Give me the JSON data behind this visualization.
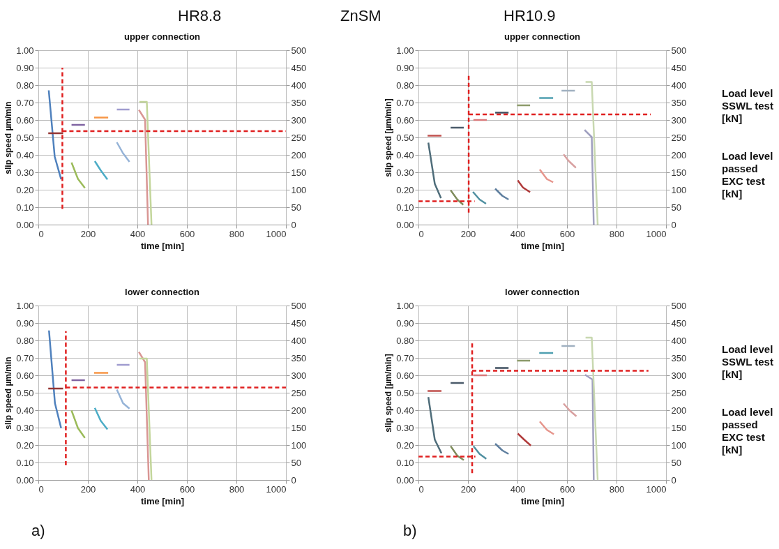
{
  "chart_data": [
    {
      "type": "line",
      "title": "upper connection",
      "xlabel": "time [min]",
      "ylabel": "slip speed µm/min",
      "annotations": [
        "HR8.8",
        "ZnSM"
      ],
      "xlim": [
        0,
        1000
      ],
      "xticks": [
        0,
        200,
        400,
        600,
        800,
        1000
      ],
      "ylim": [
        0,
        1
      ],
      "yticks": [
        {
          "value": 0,
          "label": "0.00"
        },
        {
          "value": 0.1,
          "label": "0.10"
        },
        {
          "value": 0.2,
          "label": "0.20"
        },
        {
          "value": 0.3,
          "label": "0.30"
        },
        {
          "value": 0.4,
          "label": "0.40"
        },
        {
          "value": 0.5,
          "label": "0.50"
        },
        {
          "value": 0.6,
          "label": "0.60"
        },
        {
          "value": 0.7,
          "label": "0.70"
        },
        {
          "value": 0.8,
          "label": "0.80"
        },
        {
          "value": 0.9,
          "label": "0.90"
        },
        {
          "value": 1,
          "label": "1.00"
        }
      ],
      "y2lim": [
        0,
        500
      ],
      "y2ticks": [
        0,
        50,
        100,
        150,
        200,
        250,
        300,
        350,
        400,
        450,
        500
      ],
      "grid": true,
      "legend": false,
      "series": [
        {
          "color": "#4f81bd",
          "x": [
            42,
            66,
            92
          ],
          "values": [
            0.77,
            0.39,
            0.26
          ]
        },
        {
          "color": "#943634",
          "axis": "y2",
          "x": [
            40,
            100
          ],
          "values": [
            262,
            262
          ]
        },
        {
          "color": "#8064a2",
          "axis": "y2",
          "x": [
            134,
            188
          ],
          "values": [
            286,
            286
          ]
        },
        {
          "color": "#9bbb59",
          "x": [
            134,
            160,
            188
          ],
          "values": [
            0.356,
            0.262,
            0.21
          ]
        },
        {
          "color": "#f79646",
          "axis": "y2",
          "x": [
            225,
            282
          ],
          "values": [
            307,
            307
          ]
        },
        {
          "color": "#4bacc6",
          "x": [
            228,
            252,
            279
          ],
          "values": [
            0.364,
            0.311,
            0.259
          ]
        },
        {
          "color": "#a09ccf",
          "axis": "y2",
          "x": [
            317,
            368
          ],
          "values": [
            330,
            330
          ]
        },
        {
          "color": "#95b3d7",
          "x": [
            317,
            342,
            368
          ],
          "values": [
            0.472,
            0.409,
            0.36
          ]
        },
        {
          "color": "#d99694",
          "x": [
            406,
            431,
            443
          ],
          "values": [
            0.658,
            0.602,
            0
          ]
        },
        {
          "color": "#c3d69b",
          "axis": "y2",
          "x": [
            408,
            438,
            457
          ],
          "values": [
            352,
            352,
            0
          ]
        },
        {
          "color": "#e02020",
          "line_style": "dashed",
          "x": [
            97,
            97
          ],
          "values": [
            0.09,
            0.9
          ]
        },
        {
          "color": "#e02020",
          "line_style": "dashed",
          "axis": "y2",
          "x": [
            97,
            1000
          ],
          "values": [
            268,
            268
          ]
        }
      ]
    },
    {
      "type": "line",
      "title": "upper connection",
      "xlabel": "time [min]",
      "ylabel": "slip speed [µm/min]",
      "annotations": [
        "HR10.9",
        "Load level SSWL test [kN]",
        "Load level passed EXC test [kN]"
      ],
      "xlim": [
        0,
        1000
      ],
      "xticks": [
        0,
        200,
        400,
        600,
        800,
        1000
      ],
      "ylim": [
        0,
        1
      ],
      "yticks": [
        {
          "value": 0,
          "label": "0.00"
        },
        {
          "value": 0.1,
          "label": "0.10"
        },
        {
          "value": 0.2,
          "label": "0.20"
        },
        {
          "value": 0.3,
          "label": "0.30"
        },
        {
          "value": 0.4,
          "label": "0.40"
        },
        {
          "value": 0.5,
          "label": "0.50"
        },
        {
          "value": 0.6,
          "label": "0.60"
        },
        {
          "value": 0.7,
          "label": "0.70"
        },
        {
          "value": 0.8,
          "label": "0.80"
        },
        {
          "value": 0.9,
          "label": "0.90"
        },
        {
          "value": 1,
          "label": "1.00"
        }
      ],
      "y2lim": [
        0,
        500
      ],
      "y2ticks": [
        0,
        50,
        100,
        150,
        200,
        250,
        300,
        350,
        400,
        450,
        500
      ],
      "grid": true,
      "legend": false,
      "series": [
        {
          "color": "#4f6d7a",
          "x": [
            40,
            66,
            91
          ],
          "values": [
            0.47,
            0.234,
            0.152
          ]
        },
        {
          "color": "#c0504d",
          "axis": "y2",
          "x": [
            37,
            93
          ],
          "values": [
            255,
            255
          ]
        },
        {
          "color": "#7f8c5c",
          "x": [
            130,
            157,
            181
          ],
          "values": [
            0.197,
            0.144,
            0.114
          ]
        },
        {
          "color": "#4a5a6a",
          "axis": "y2",
          "x": [
            130,
            183
          ],
          "values": [
            278,
            278
          ]
        },
        {
          "color": "#d9787a",
          "axis": "y2",
          "x": [
            222,
            276
          ],
          "values": [
            300,
            300
          ]
        },
        {
          "color": "#4f8fa0",
          "x": [
            220,
            247,
            273
          ],
          "values": [
            0.188,
            0.144,
            0.12
          ]
        },
        {
          "color": "#3f4f5f",
          "axis": "y2",
          "x": [
            310,
            364
          ],
          "values": [
            321,
            321
          ]
        },
        {
          "color": "#5f7f9f",
          "x": [
            310,
            339,
            364
          ],
          "values": [
            0.206,
            0.165,
            0.144
          ]
        },
        {
          "color": "#8c9a6a",
          "axis": "y2",
          "x": [
            398,
            451
          ],
          "values": [
            342,
            342
          ]
        },
        {
          "color": "#b03a3a",
          "x": [
            401,
            422,
            451
          ],
          "values": [
            0.254,
            0.213,
            0.186
          ]
        },
        {
          "color": "#4f9fb0",
          "axis": "y2",
          "x": [
            488,
            544
          ],
          "values": [
            363,
            363
          ]
        },
        {
          "color": "#e6958c",
          "x": [
            490,
            519,
            544
          ],
          "values": [
            0.316,
            0.261,
            0.243
          ]
        },
        {
          "color": "#a0b0c0",
          "axis": "y2",
          "x": [
            578,
            632
          ],
          "values": [
            384,
            384
          ]
        },
        {
          "color": "#d8a0a0",
          "x": [
            586,
            607,
            636
          ],
          "values": [
            0.403,
            0.365,
            0.326
          ]
        },
        {
          "color": "#a0a0c0",
          "x": [
            671,
            700,
            708
          ],
          "values": [
            0.543,
            0.502,
            0
          ]
        },
        {
          "color": "#c8d8b0",
          "axis": "y2",
          "x": [
            675,
            700,
            724
          ],
          "values": [
            409,
            409,
            0
          ]
        },
        {
          "color": "#e02020",
          "line_style": "dashed",
          "x": [
            203,
            203
          ],
          "values": [
            0.069,
            0.857
          ]
        },
        {
          "color": "#e02020",
          "line_style": "dashed",
          "axis": "y2",
          "x": [
            0,
            227
          ],
          "values": [
            67,
            67
          ]
        },
        {
          "color": "#e02020",
          "line_style": "dashed",
          "axis": "y2",
          "x": [
            203,
            938
          ],
          "values": [
            316,
            316
          ]
        }
      ]
    },
    {
      "type": "line",
      "title": "lower connection",
      "xlabel": "time [min]",
      "ylabel": "slip speed µm/min",
      "annotations": [
        "a)"
      ],
      "xlim": [
        0,
        1000
      ],
      "xticks": [
        0,
        200,
        400,
        600,
        800,
        1000
      ],
      "ylim": [
        0,
        1
      ],
      "yticks": [
        {
          "value": 0,
          "label": "0.00"
        },
        {
          "value": 0.1,
          "label": "0.10"
        },
        {
          "value": 0.2,
          "label": "0.20"
        },
        {
          "value": 0.3,
          "label": "0.30"
        },
        {
          "value": 0.4,
          "label": "0.40"
        },
        {
          "value": 0.5,
          "label": "0.50"
        },
        {
          "value": 0.6,
          "label": "0.60"
        },
        {
          "value": 0.7,
          "label": "0.70"
        },
        {
          "value": 0.8,
          "label": "0.80"
        },
        {
          "value": 0.9,
          "label": "0.90"
        },
        {
          "value": 1,
          "label": "1.00"
        }
      ],
      "y2lim": [
        0,
        500
      ],
      "y2ticks": [
        0,
        50,
        100,
        150,
        200,
        250,
        300,
        350,
        400,
        450,
        500
      ],
      "grid": true,
      "legend": false,
      "series": [
        {
          "color": "#4f81bd",
          "x": [
            43,
            67,
            92
          ],
          "values": [
            0.857,
            0.44,
            0.297
          ]
        },
        {
          "color": "#943634",
          "axis": "y2",
          "x": [
            40,
            100
          ],
          "values": [
            262,
            262
          ]
        },
        {
          "color": "#8064a2",
          "axis": "y2",
          "x": [
            134,
            188
          ],
          "values": [
            286,
            286
          ]
        },
        {
          "color": "#9bbb59",
          "x": [
            134,
            160,
            188
          ],
          "values": [
            0.398,
            0.297,
            0.241
          ]
        },
        {
          "color": "#f79646",
          "axis": "y2",
          "x": [
            225,
            282
          ],
          "values": [
            307,
            307
          ]
        },
        {
          "color": "#4bacc6",
          "x": [
            228,
            252,
            279
          ],
          "values": [
            0.413,
            0.339,
            0.29
          ]
        },
        {
          "color": "#a09ccf",
          "axis": "y2",
          "x": [
            317,
            368
          ],
          "values": [
            330,
            330
          ]
        },
        {
          "color": "#95b3d7",
          "x": [
            317,
            342,
            368
          ],
          "values": [
            0.518,
            0.44,
            0.409
          ]
        },
        {
          "color": "#d99694",
          "x": [
            406,
            431,
            446
          ],
          "values": [
            0.734,
            0.675,
            0
          ]
        },
        {
          "color": "#c3d69b",
          "axis": "y2",
          "x": [
            408,
            438,
            457
          ],
          "values": [
            348,
            348,
            0
          ]
        },
        {
          "color": "#e02020",
          "line_style": "dashed",
          "x": [
            111,
            111
          ],
          "values": [
            0.084,
            0.853
          ]
        },
        {
          "color": "#e02020",
          "line_style": "dashed",
          "axis": "y2",
          "x": [
            111,
            1000
          ],
          "values": [
            265,
            265
          ]
        }
      ]
    },
    {
      "type": "line",
      "title": "lower connection",
      "xlabel": "time [min]",
      "ylabel": "slip speed [µm/min]",
      "annotations": [
        "b)",
        "Load level SSWL test [kN]",
        "Load level passed EXC test [kN]"
      ],
      "xlim": [
        0,
        1000
      ],
      "xticks": [
        0,
        200,
        400,
        600,
        800,
        1000
      ],
      "ylim": [
        0,
        1
      ],
      "yticks": [
        {
          "value": 0,
          "label": "0.00"
        },
        {
          "value": 0.1,
          "label": "0.10"
        },
        {
          "value": 0.2,
          "label": "0.20"
        },
        {
          "value": 0.3,
          "label": "0.30"
        },
        {
          "value": 0.4,
          "label": "0.40"
        },
        {
          "value": 0.5,
          "label": "0.50"
        },
        {
          "value": 0.6,
          "label": "0.60"
        },
        {
          "value": 0.7,
          "label": "0.70"
        },
        {
          "value": 0.8,
          "label": "0.80"
        },
        {
          "value": 0.9,
          "label": "0.90"
        },
        {
          "value": 1,
          "label": "1.00"
        }
      ],
      "y2lim": [
        0,
        500
      ],
      "y2ticks": [
        0,
        50,
        100,
        150,
        200,
        250,
        300,
        350,
        400,
        450,
        500
      ],
      "grid": true,
      "legend": false,
      "series": [
        {
          "color": "#4f6d7a",
          "x": [
            40,
            66,
            93
          ],
          "values": [
            0.475,
            0.231,
            0.153
          ]
        },
        {
          "color": "#c0504d",
          "axis": "y2",
          "x": [
            37,
            93
          ],
          "values": [
            255,
            255
          ]
        },
        {
          "color": "#7f8c5c",
          "x": [
            130,
            157,
            183
          ],
          "values": [
            0.194,
            0.139,
            0.114
          ]
        },
        {
          "color": "#4a5a6a",
          "axis": "y2",
          "x": [
            130,
            183
          ],
          "values": [
            278,
            278
          ]
        },
        {
          "color": "#d9787a",
          "axis": "y2",
          "x": [
            222,
            276
          ],
          "values": [
            300,
            300
          ]
        },
        {
          "color": "#4f8fa0",
          "x": [
            222,
            247,
            274
          ],
          "values": [
            0.194,
            0.149,
            0.121
          ]
        },
        {
          "color": "#3f4f5f",
          "axis": "y2",
          "x": [
            310,
            364
          ],
          "values": [
            321,
            321
          ]
        },
        {
          "color": "#5f7f9f",
          "x": [
            310,
            339,
            364
          ],
          "values": [
            0.208,
            0.169,
            0.149
          ]
        },
        {
          "color": "#8c9a6a",
          "axis": "y2",
          "x": [
            398,
            451
          ],
          "values": [
            342,
            342
          ]
        },
        {
          "color": "#b03a3a",
          "x": [
            401,
            427,
            454
          ],
          "values": [
            0.266,
            0.231,
            0.197
          ]
        },
        {
          "color": "#4f9fb0",
          "axis": "y2",
          "x": [
            488,
            544
          ],
          "values": [
            364,
            364
          ]
        },
        {
          "color": "#e6958c",
          "x": [
            490,
            519,
            547
          ],
          "values": [
            0.335,
            0.287,
            0.262
          ]
        },
        {
          "color": "#a0b0c0",
          "axis": "y2",
          "x": [
            578,
            632
          ],
          "values": [
            384,
            384
          ]
        },
        {
          "color": "#d8a0a0",
          "x": [
            586,
            612,
            638
          ],
          "values": [
            0.438,
            0.397,
            0.365
          ]
        },
        {
          "color": "#a0a0c0",
          "x": [
            673,
            703,
            708
          ],
          "values": [
            0.603,
            0.576,
            0
          ]
        },
        {
          "color": "#c8d8b0",
          "axis": "y2",
          "x": [
            675,
            700,
            724
          ],
          "values": [
            408,
            408,
            0
          ]
        },
        {
          "color": "#e02020",
          "line_style": "dashed",
          "x": [
            217,
            217
          ],
          "values": [
            0.039,
            0.796
          ]
        },
        {
          "color": "#e02020",
          "line_style": "dashed",
          "axis": "y2",
          "x": [
            0,
            230
          ],
          "values": [
            67,
            67
          ]
        },
        {
          "color": "#e02020",
          "line_style": "dashed",
          "axis": "y2",
          "x": [
            217,
            929
          ],
          "values": [
            313,
            313
          ]
        }
      ]
    }
  ]
}
